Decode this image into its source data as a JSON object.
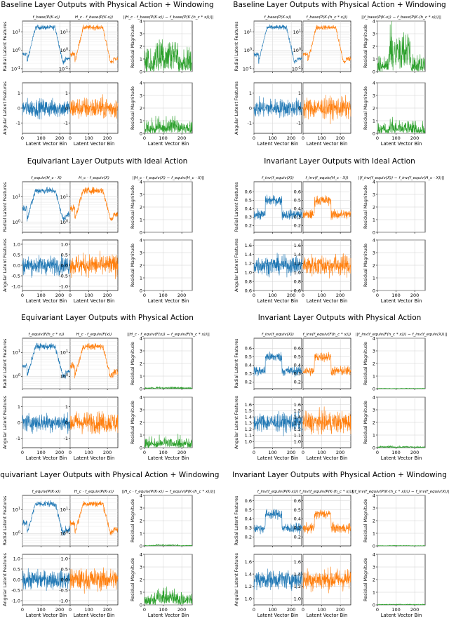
{
  "chart_data": [
    {
      "type": "line",
      "title": "Baseline Layer Outputs with Physical Action + Windowing",
      "xlabel": "Latent Vector Bin",
      "xlim": [
        0,
        256
      ],
      "xticks": [
        "0",
        "100",
        "200"
      ],
      "colors": [
        "#1f77b4",
        "#ff7f0e",
        "#2ca02c"
      ],
      "subplot_titles": [
        "f_base(P(K·x))",
        "H_c · f_base(P(K·x))",
        "||H_c · f_base(P(K·x)) − f_base(P(K·(h_c * x)))||"
      ],
      "row_ylabels": [
        "Radial Latent Features",
        "Angular Latent Features"
      ],
      "residual_ylabel": "Residual Magnitude",
      "radial_log_scale": true,
      "radial_ylim": [
        0.07,
        40
      ],
      "radial_yticks": [
        "10^1",
        "10^0",
        "10^-1"
      ],
      "angular_ylim": [
        -1.7,
        1.7
      ],
      "angular_yticks": [
        "1",
        "0",
        "-1"
      ],
      "residual_ylim": [
        0,
        4
      ],
      "residual_yticks": [
        "0",
        "1",
        "2",
        "3",
        "4"
      ]
    },
    {
      "type": "line",
      "title": "Baseline Layer Outputs with Physical Action + Windowing",
      "xlabel": "Latent Vector Bin",
      "xlim": [
        0,
        256
      ],
      "xticks": [
        "0",
        "100",
        "200"
      ],
      "colors": [
        "#1f77b4",
        "#ff7f0e",
        "#2ca02c"
      ],
      "subplot_titles": [
        "f_base(P(K·x))",
        "f_base(P(K·(h_c * x)))",
        "||f_base(P(K·x)) − f_base(P(K·(h_c * x)))||"
      ],
      "row_ylabels": [
        "Radial Latent Features",
        "Angular Latent Features"
      ],
      "residual_ylabel": "Residual Magnitude",
      "radial_log_scale": true,
      "radial_ylim": [
        0.07,
        40
      ],
      "radial_yticks": [
        "10^1",
        "10^0",
        "10^-1"
      ],
      "angular_ylim": [
        -1.7,
        1.7
      ],
      "angular_yticks": [
        "1",
        "0",
        "-1"
      ],
      "residual_ylim": [
        0,
        4
      ],
      "residual_yticks": [
        "0",
        "1",
        "2",
        "3",
        "4"
      ]
    },
    {
      "type": "line",
      "title": "Equivariant Layer Outputs with Ideal Action",
      "xlabel": "Latent Vector Bin",
      "xlim": [
        0,
        256
      ],
      "xticks": [
        "0",
        "100",
        "200"
      ],
      "colors": [
        "#1f77b4",
        "#ff7f0e",
        "#2ca02c"
      ],
      "subplot_titles": [
        "f_equiv(H_c · X)",
        "H_c · f_equiv(X)",
        "||H_c · f_equiv(X) − f_equiv(H_c · X)||"
      ],
      "row_ylabels": [
        "Radial Latent Features",
        "Angular Latent Features"
      ],
      "residual_ylabel": "Residual Magnitude",
      "radial_log_scale": true,
      "radial_ylim": [
        0.4,
        40
      ],
      "radial_yticks": [
        "10^1",
        "10^0"
      ],
      "angular_ylim": [
        -1.2,
        1.2
      ],
      "angular_yticks": [
        "1.0",
        "0.5",
        "0.0",
        "-0.5",
        "-1.0"
      ],
      "residual_ylim": [
        0,
        4
      ],
      "residual_yticks": [
        "0",
        "1",
        "2",
        "3",
        "4"
      ]
    },
    {
      "type": "line",
      "title": "Invariant Layer Outputs with Ideal Action",
      "xlabel": "Latent Vector Bin",
      "xlim": [
        0,
        256
      ],
      "xticks": [
        "0",
        "100",
        "200"
      ],
      "colors": [
        "#1f77b4",
        "#ff7f0e",
        "#2ca02c"
      ],
      "subplot_titles": [
        "f_inv(f_equiv(X))",
        "f_inv(f_equiv(H_c · X))",
        "||f_inv(f_equiv(X)) − f_inv(f_equiv(H_c · X))||"
      ],
      "row_ylabels": [
        "Radial Latent Features",
        "Angular Latent Features"
      ],
      "residual_ylabel": "Residual Magnitude",
      "radial_log_scale": false,
      "radial_ylim": [
        0.12,
        0.72
      ],
      "radial_yticks": [
        "0.6",
        "0.5",
        "0.4",
        "0.3",
        "0.2"
      ],
      "angular_ylim": [
        0.6,
        1.72
      ],
      "angular_yticks": [
        "1.6",
        "1.4",
        "1.2",
        "1.0",
        "0.8",
        "0.6"
      ],
      "residual_ylim": [
        0,
        4
      ],
      "residual_yticks": [
        "0",
        "1",
        "2",
        "3",
        "4"
      ]
    },
    {
      "type": "line",
      "title": "Equivariant Layer Outputs with Physical Action",
      "xlabel": "Latent Vector Bin",
      "xlim": [
        0,
        256
      ],
      "xticks": [
        "0",
        "100",
        "200"
      ],
      "colors": [
        "#1f77b4",
        "#ff7f0e",
        "#2ca02c"
      ],
      "subplot_titles": [
        "f_equiv(F(h_c * x))",
        "H_c · f_equiv(F(x))",
        "||H_c · f_equiv(F(x)) − f_equiv(F(h_c * x))||"
      ],
      "row_ylabels": [
        "Radial Latent Features",
        "Angular Latent Features"
      ],
      "residual_ylabel": "Residual Magnitude",
      "radial_log_scale": true,
      "radial_ylim": [
        0.3,
        40
      ],
      "radial_yticks": [
        "10^1",
        "10^0"
      ],
      "angular_ylim": [
        -1.6,
        1.6
      ],
      "angular_yticks": [
        "1",
        "0",
        "-1"
      ],
      "residual_ylim": [
        0,
        4
      ],
      "residual_yticks": [
        "0",
        "1",
        "2",
        "3",
        "4"
      ]
    },
    {
      "type": "line",
      "title": "Invariant Layer Outputs with Physical Action",
      "xlabel": "Latent Vector Bin",
      "xlim": [
        0,
        256
      ],
      "xticks": [
        "0",
        "100",
        "200"
      ],
      "colors": [
        "#1f77b4",
        "#ff7f0e",
        "#2ca02c"
      ],
      "subplot_titles": [
        "f_inv(f_equiv(X))",
        "f_inv(f_equiv(F(h_c * x)))",
        "||f_inv(f_equiv(F(h_c * x))) − f_inv(f_equiv(X))||"
      ],
      "row_ylabels": [
        "Radial Latent Features",
        "Angular Latent Features"
      ],
      "residual_ylabel": "Residual Magnitude",
      "radial_log_scale": false,
      "radial_ylim": [
        0.12,
        0.72
      ],
      "radial_yticks": [
        "0.6",
        "0.5",
        "0.4",
        "0.3",
        "0.2"
      ],
      "angular_ylim": [
        0.9,
        1.72
      ],
      "angular_yticks": [
        "1.6",
        "1.5",
        "1.4",
        "1.3",
        "1.2",
        "1.1",
        "1.0"
      ],
      "residual_ylim": [
        0,
        4
      ],
      "residual_yticks": [
        "0",
        "1",
        "2",
        "3",
        "4"
      ]
    },
    {
      "type": "line",
      "title": "Equivariant Layer Outputs with Physical Action + Windowing",
      "xlabel": "Latent Vector Bin",
      "xlim": [
        0,
        256
      ],
      "xticks": [
        "0",
        "100",
        "200"
      ],
      "colors": [
        "#1f77b4",
        "#ff7f0e",
        "#2ca02c"
      ],
      "subplot_titles": [
        "f_equiv(P(K·x))",
        "H_c · f_equiv(P(K·x))",
        "||H_c · f_equiv(P(K·x)) − f_equiv(P(K·(h_c * x)))||"
      ],
      "row_ylabels": [
        "Radial Latent Features",
        "Angular Latent Features"
      ],
      "residual_ylabel": "Residual Magnitude",
      "radial_log_scale": true,
      "radial_ylim": [
        0.3,
        40
      ],
      "radial_yticks": [
        "10^1",
        "10^0"
      ],
      "angular_ylim": [
        -1.2,
        1.2
      ],
      "angular_yticks": [
        "1.0",
        "0.5",
        "0.0",
        "-0.5",
        "-1.0"
      ],
      "residual_ylim": [
        0,
        4
      ],
      "residual_yticks": [
        "0",
        "1",
        "2",
        "3",
        "4"
      ]
    },
    {
      "type": "line",
      "title": "Invariant Layer Outputs with Physical Action + Windowing",
      "xlabel": "Latent Vector Bin",
      "xlim": [
        0,
        256
      ],
      "xticks": [
        "0",
        "100",
        "200"
      ],
      "colors": [
        "#1f77b4",
        "#ff7f0e",
        "#2ca02c"
      ],
      "subplot_titles": [
        "f_inv(f_equiv(P(K·x)))",
        "f_inv(f_equiv(P(K·(h_c * x))))",
        "||f_inv(f_equiv(P(K·(h_c * x)))) − f_inv(f_equiv(X))||"
      ],
      "row_ylabels": [
        "Radial Latent Features",
        "Angular Latent Features"
      ],
      "residual_ylabel": "Residual Magnitude",
      "radial_log_scale": false,
      "radial_ylim": [
        0.1,
        0.66
      ],
      "radial_yticks": [
        "0.6",
        "0.5",
        "0.4",
        "0.3",
        "0.2"
      ],
      "angular_ylim": [
        0.9,
        1.72
      ],
      "angular_yticks": [
        "1.6",
        "1.4",
        "1.2",
        "1.0"
      ],
      "residual_ylim": [
        0,
        4
      ],
      "residual_yticks": [
        "0",
        "1",
        "2",
        "3",
        "4"
      ]
    }
  ]
}
